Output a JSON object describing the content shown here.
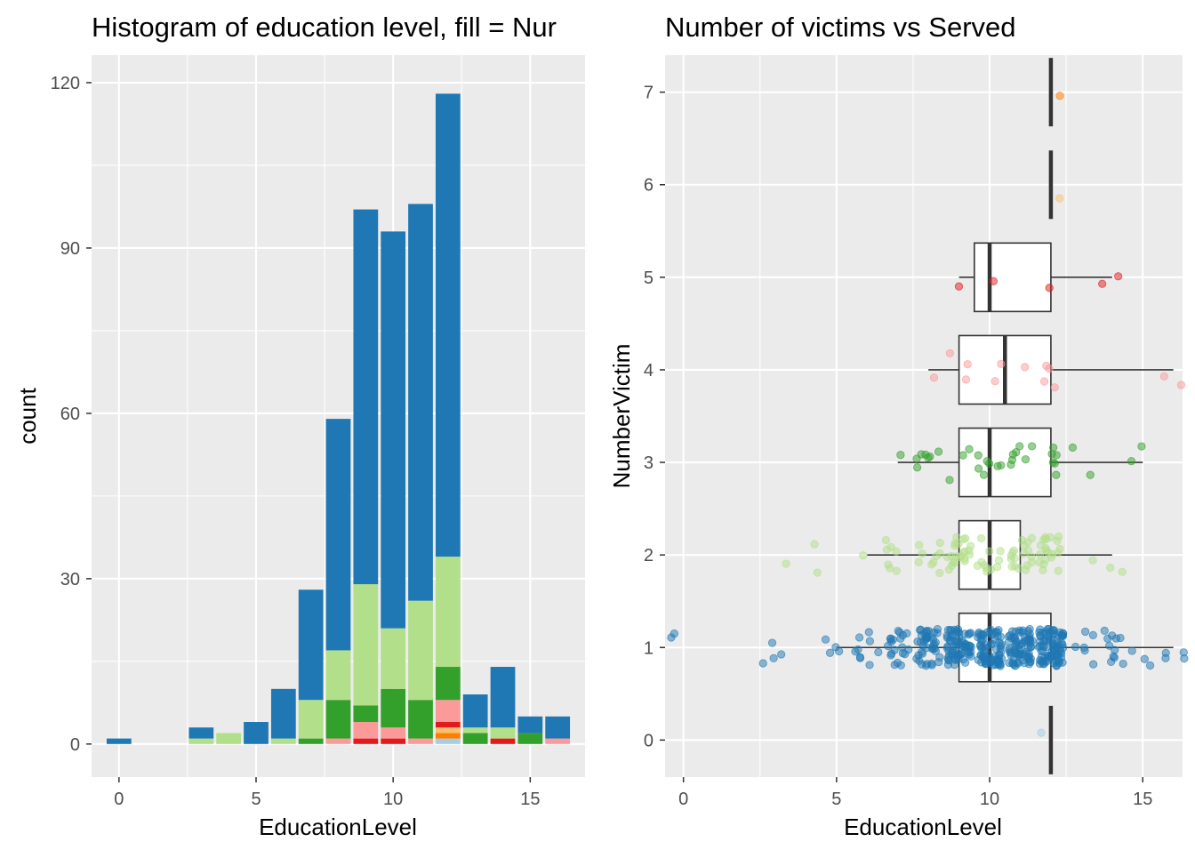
{
  "chart_data": [
    {
      "type": "bar",
      "title": "Histogram of education level, fill = Nur",
      "xlabel": "EducationLevel",
      "ylabel": "count",
      "xlim": [
        -1.0,
        17.0
      ],
      "ylim": [
        -6,
        125
      ],
      "x_ticks": [
        0,
        5,
        10,
        15
      ],
      "y_ticks": [
        0,
        30,
        60,
        90,
        120
      ],
      "grid": true,
      "legend": "none",
      "stack_order": [
        "0",
        "7",
        "6",
        "5",
        "4",
        "3",
        "2",
        "1"
      ],
      "series_colors": {
        "0": "#a6cee3",
        "1": "#1f78b4",
        "2": "#b2df8a",
        "3": "#33a02c",
        "4": "#fb9a99",
        "5": "#e31a1c",
        "6": "#fdbf6f",
        "7": "#ff7f00"
      },
      "bars": [
        {
          "x": 0,
          "counts": {
            "1": 1
          }
        },
        {
          "x": 3,
          "counts": {
            "1": 2,
            "2": 1
          }
        },
        {
          "x": 4,
          "counts": {
            "2": 2
          }
        },
        {
          "x": 5,
          "counts": {
            "1": 4
          }
        },
        {
          "x": 6,
          "counts": {
            "1": 9,
            "2": 1
          }
        },
        {
          "x": 7,
          "counts": {
            "1": 20,
            "2": 7,
            "3": 1
          }
        },
        {
          "x": 8,
          "counts": {
            "1": 42,
            "2": 9,
            "3": 7,
            "4": 1
          }
        },
        {
          "x": 9,
          "counts": {
            "1": 68,
            "2": 22,
            "3": 3,
            "4": 3,
            "5": 1
          }
        },
        {
          "x": 10,
          "counts": {
            "1": 72,
            "2": 11,
            "3": 7,
            "4": 2,
            "5": 1
          }
        },
        {
          "x": 11,
          "counts": {
            "1": 72,
            "2": 18,
            "3": 7,
            "4": 1
          }
        },
        {
          "x": 12,
          "counts": {
            "0": 1,
            "1": 84,
            "2": 20,
            "3": 6,
            "4": 4,
            "5": 1,
            "6": 1,
            "7": 1
          }
        },
        {
          "x": 13,
          "counts": {
            "1": 6,
            "2": 1,
            "3": 2
          }
        },
        {
          "x": 14,
          "counts": {
            "1": 11,
            "2": 2,
            "5": 1
          }
        },
        {
          "x": 15,
          "counts": {
            "1": 3,
            "3": 2
          }
        },
        {
          "x": 16,
          "counts": {
            "1": 4,
            "4": 1
          }
        }
      ]
    },
    {
      "type": "boxplot",
      "title": "Number of victims vs Served",
      "xlabel": "EducationLevel",
      "ylabel": "NumberVictim",
      "xlim": [
        -0.6,
        16.3
      ],
      "ylim": [
        -0.4,
        7.4
      ],
      "x_ticks": [
        0,
        5,
        10,
        15
      ],
      "y_ticks": [
        0,
        1,
        2,
        3,
        4,
        5,
        6,
        7
      ],
      "grid": true,
      "legend": "none",
      "boxes": [
        {
          "y": 0,
          "min": 12,
          "q1": 12,
          "median": 12,
          "q3": 12,
          "max": 12,
          "color": "#a6cee3"
        },
        {
          "y": 1,
          "min": 5,
          "q1": 9,
          "median": 10,
          "q3": 12,
          "max": 16,
          "color": "#1f78b4"
        },
        {
          "y": 2,
          "min": 6,
          "q1": 9,
          "median": 10,
          "q3": 11,
          "max": 14,
          "color": "#b2df8a"
        },
        {
          "y": 3,
          "min": 7,
          "q1": 9,
          "median": 10,
          "q3": 12,
          "max": 15,
          "color": "#33a02c"
        },
        {
          "y": 4,
          "min": 8,
          "q1": 9,
          "median": 10.5,
          "q3": 12,
          "max": 16,
          "color": "#fb9a99"
        },
        {
          "y": 5,
          "min": 9,
          "q1": 9.5,
          "median": 10,
          "q3": 12,
          "max": 14,
          "color": "#e31a1c"
        },
        {
          "y": 6,
          "min": 12,
          "q1": 12,
          "median": 12,
          "q3": 12,
          "max": 12,
          "color": "#fdbf6f"
        },
        {
          "y": 7,
          "min": 12,
          "q1": 12,
          "median": 12,
          "q3": 12,
          "max": 12,
          "color": "#ff7f00"
        }
      ],
      "outliers": [
        {
          "x": -0.3,
          "y": 1.15
        },
        {
          "x": 2.6,
          "y": 0.83
        },
        {
          "x": 2.9,
          "y": 1.05
        },
        {
          "x": 15.7,
          "y": 3.93
        },
        {
          "x": 14.2,
          "y": 5.01
        }
      ]
    }
  ]
}
